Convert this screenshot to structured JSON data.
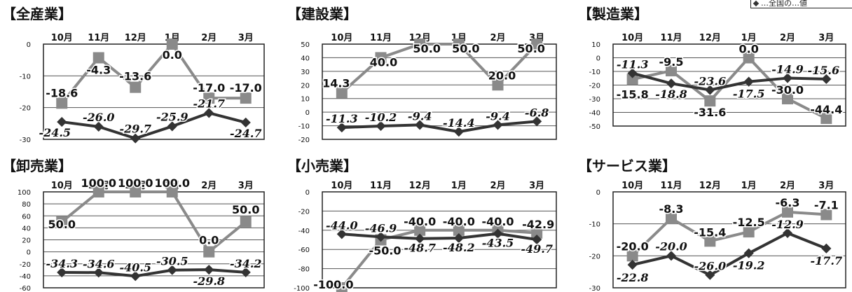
{
  "legend": {
    "label": "…全国の…値"
  },
  "colors": {
    "dark": "#333333",
    "gray": "#8a8a8a",
    "grid": "#555555",
    "text": "#111111"
  },
  "chart_data": [
    {
      "type": "line",
      "title": "【全産業】",
      "categories": [
        "10月",
        "11月",
        "12月",
        "1月",
        "2月",
        "3月"
      ],
      "ylim": [
        -30,
        0
      ],
      "yticks": [
        0,
        -10,
        -20,
        -30
      ],
      "series": [
        {
          "role": "gray",
          "values": [
            -18.6,
            -4.3,
            -13.6,
            0.0,
            -17.0,
            -17.0
          ],
          "labels": [
            "-18.6",
            "-4.3",
            "-13.6",
            "0.0",
            "-17.0",
            "-17.0"
          ]
        },
        {
          "role": "dark",
          "values": [
            -24.5,
            -26.0,
            -29.7,
            -25.9,
            -21.7,
            -24.7
          ],
          "labels": [
            "-24.5",
            "-26.0",
            "-29.7",
            "-25.9",
            "-21.7",
            "-24.7"
          ]
        }
      ]
    },
    {
      "type": "line",
      "title": "【建設業】",
      "categories": [
        "10月",
        "11月",
        "12月",
        "1月",
        "2月",
        "3月"
      ],
      "ylim": [
        -20,
        50
      ],
      "yticks": [
        50,
        40,
        30,
        20,
        10,
        0,
        -10,
        -20
      ],
      "series": [
        {
          "role": "gray",
          "values": [
            14.3,
            40.0,
            50.0,
            50.0,
            20.0,
            50.0
          ],
          "labels": [
            "14.3",
            "40.0",
            "50.0",
            "50.0",
            "20.0",
            "50.0"
          ]
        },
        {
          "role": "dark",
          "values": [
            -11.3,
            -10.2,
            -9.4,
            -14.4,
            -9.4,
            -6.8
          ],
          "labels": [
            "-11.3",
            "-10.2",
            "-9.4",
            "-14.4",
            "-9.4",
            "-6.8"
          ]
        }
      ]
    },
    {
      "type": "line",
      "title": "【製造業】",
      "categories": [
        "10月",
        "11月",
        "12月",
        "1月",
        "2月",
        "3月"
      ],
      "ylim": [
        -50,
        10
      ],
      "yticks": [
        10,
        0,
        -10,
        -20,
        -30,
        -40,
        -50
      ],
      "series": [
        {
          "role": "gray",
          "values": [
            -15.8,
            -9.5,
            -31.6,
            0.0,
            -30.0,
            -44.4
          ],
          "labels": [
            "-15.8",
            "-9.5",
            "-31.6",
            "0.0",
            "-30.0",
            "-44.4"
          ]
        },
        {
          "role": "dark",
          "values": [
            -11.3,
            -18.8,
            -23.6,
            -17.5,
            -14.9,
            -15.6
          ],
          "labels": [
            "-11.3",
            "-18.8",
            "-23.6",
            "-17.5",
            "-14.9",
            "-15.6"
          ]
        }
      ]
    },
    {
      "type": "line",
      "title": "【卸売業】",
      "categories": [
        "10月",
        "11月",
        "12月",
        "1月",
        "2月",
        "3月"
      ],
      "ylim": [
        -60,
        100
      ],
      "yticks": [
        100,
        80,
        60,
        40,
        20,
        0,
        -20,
        -40,
        -60
      ],
      "series": [
        {
          "role": "gray",
          "values": [
            50.0,
            100.0,
            100.0,
            100.0,
            0.0,
            50.0
          ],
          "labels": [
            "50.0",
            "100.0",
            "100.0",
            "100.0",
            "0.0",
            "50.0"
          ]
        },
        {
          "role": "dark",
          "values": [
            -34.3,
            -34.6,
            -40.5,
            -30.5,
            -29.8,
            -34.2
          ],
          "labels": [
            "-34.3",
            "-34.6",
            "-40.5",
            "-30.5",
            "-29.8",
            "-34.2"
          ]
        }
      ]
    },
    {
      "type": "line",
      "title": "【小売業】",
      "categories": [
        "10月",
        "11月",
        "12月",
        "1月",
        "2月",
        "3月"
      ],
      "ylim": [
        -100,
        0
      ],
      "yticks": [
        0,
        -20,
        -40,
        -60,
        -80,
        -100
      ],
      "series": [
        {
          "role": "gray",
          "values": [
            -100.0,
            -50.0,
            -40.0,
            -40.0,
            -40.0,
            -42.9
          ],
          "labels": [
            "-100.0",
            "-50.0",
            "-40.0",
            "-40.0",
            "-40.0",
            "-42.9"
          ]
        },
        {
          "role": "dark",
          "values": [
            -44.0,
            -46.9,
            -48.7,
            -48.2,
            -43.5,
            -49.7
          ],
          "labels": [
            "-44.0",
            "-46.9",
            "-48.7",
            "-48.2",
            "-43.5",
            "-49.7"
          ]
        }
      ]
    },
    {
      "type": "line",
      "title": "【サービス業】",
      "categories": [
        "10月",
        "11月",
        "12月",
        "1月",
        "2月",
        "3月"
      ],
      "ylim": [
        -30,
        0
      ],
      "yticks": [
        0,
        -10,
        -20,
        -30
      ],
      "series": [
        {
          "role": "gray",
          "values": [
            -20.0,
            -8.3,
            -15.4,
            -12.5,
            -6.3,
            -7.1
          ],
          "labels": [
            "-20.0",
            "-8.3",
            "-15.4",
            "-12.5",
            "-6.3",
            "-7.1"
          ]
        },
        {
          "role": "dark",
          "values": [
            -22.8,
            -20.0,
            -26.0,
            -19.2,
            -12.9,
            -17.7
          ],
          "labels": [
            "-22.8",
            "-20.0",
            "-26.0",
            "-19.2",
            "-12.9",
            "-17.7"
          ]
        }
      ]
    }
  ]
}
